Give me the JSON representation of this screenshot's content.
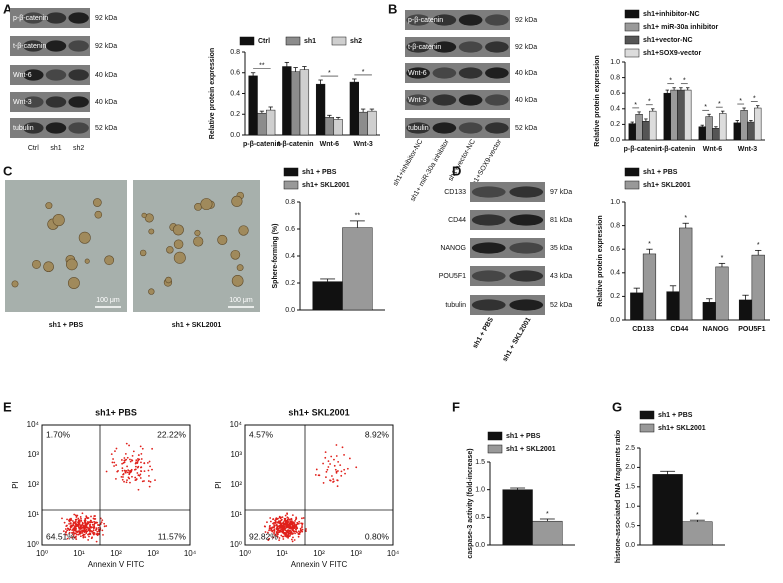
{
  "panel_letters": [
    "A",
    "B",
    "C",
    "D",
    "E",
    "F",
    "G"
  ],
  "blots": [
    {
      "rows": [
        {
          "protein": "p-β-catenin",
          "size": "92 kDa"
        },
        {
          "protein": "t-β-catenin",
          "size": "92 kDa"
        },
        {
          "protein": "Wnt-6",
          "size": "40 kDa"
        },
        {
          "protein": "Wnt-3",
          "size": "40 kDa"
        },
        {
          "protein": "tubulin",
          "size": "52 kDa"
        }
      ],
      "lanes": [
        "Ctrl",
        "sh1",
        "sh2"
      ]
    },
    {
      "rows": [
        {
          "protein": "p-β-catenin",
          "size": "92 kDa"
        },
        {
          "protein": "t-β-catenin",
          "size": "92 kDa"
        },
        {
          "protein": "Wnt-6",
          "size": "40 kDa"
        },
        {
          "protein": "Wnt-3",
          "size": "40 kDa"
        },
        {
          "protein": "tubulin",
          "size": "52 kDa"
        }
      ],
      "lanes": [
        "sh1+inhibitor-NC",
        "sh1+ miR-30a inhibitor",
        "sh1+vector-NC",
        "sh1+SOX9-vector"
      ]
    },
    {
      "rows": [
        {
          "protein": "CD133",
          "size": "97 kDa"
        },
        {
          "protein": "CD44",
          "size": "81 kDa"
        },
        {
          "protein": "NANOG",
          "size": "35 kDa"
        },
        {
          "protein": "POU5F1",
          "size": "43 kDa"
        },
        {
          "protein": "tubulin",
          "size": "52 kDa"
        }
      ],
      "lanes": [
        "sh1 + PBS",
        "sh1 + SKL2001"
      ]
    }
  ],
  "images": {
    "captions": [
      "sh1 + PBS",
      "sh1 + SKL2001"
    ],
    "scale_bars": [
      "100 μm",
      "100 μm"
    ]
  },
  "flow": {
    "plots": [
      {
        "title": "sh1+ PBS",
        "quadrants": [
          "1.70%",
          "22.22%",
          "64.51%",
          "11.57%"
        ]
      },
      {
        "title": "sh1+ SKL2001",
        "quadrants": [
          "4.57%",
          "8.92%",
          "92.82%",
          "0.80%"
        ]
      }
    ],
    "x_label": "Annexin V FITC",
    "y_label": "PI",
    "ticks": [
      "10⁰",
      "10¹",
      "10²",
      "10³",
      "10⁴"
    ]
  },
  "chart_data": [
    {
      "type": "bar",
      "y_label": "Relative protein expression",
      "categories": [
        "p-β-catenin",
        "t-β-catenin",
        "Wnt-6",
        "Wnt-3"
      ],
      "series": [
        {
          "name": "Ctrl",
          "color": "#111111",
          "values": [
            0.57,
            0.66,
            0.49,
            0.51
          ],
          "errors": [
            0.03,
            0.04,
            0.04,
            0.03
          ]
        },
        {
          "name": "sh1",
          "color": "#8c8c8c",
          "values": [
            0.21,
            0.61,
            0.17,
            0.22
          ],
          "errors": [
            0.02,
            0.04,
            0.02,
            0.03
          ]
        },
        {
          "name": "sh2",
          "color": "#cfcfcf",
          "values": [
            0.24,
            0.63,
            0.15,
            0.23
          ],
          "errors": [
            0.03,
            0.03,
            0.02,
            0.02
          ]
        }
      ],
      "ylim": [
        0,
        0.8
      ],
      "yticks": [
        {
          "value": 0,
          "label": "0.0"
        },
        0.2,
        0.4,
        0.6,
        0.8
      ],
      "annotations": [
        "**",
        null,
        "*",
        "*"
      ]
    },
    {
      "type": "bar",
      "y_label": "Relative protein expression",
      "categories": [
        "p-β-catenin",
        "t-β-catenin",
        "Wnt-6",
        "Wnt-3"
      ],
      "series": [
        {
          "name": "sh1+inhibitor-NC",
          "color": "#111111",
          "values": [
            0.21,
            0.6,
            0.17,
            0.22
          ],
          "errors": [
            0.02,
            0.04,
            0.02,
            0.03
          ]
        },
        {
          "name": "sh1+ miR-30a inhibitor",
          "color": "#9a9a9a",
          "values": [
            0.33,
            0.64,
            0.3,
            0.38
          ],
          "errors": [
            0.03,
            0.03,
            0.03,
            0.03
          ]
        },
        {
          "name": "sh1+vector-NC",
          "color": "#555555",
          "values": [
            0.24,
            0.64,
            0.15,
            0.23
          ],
          "errors": [
            0.03,
            0.03,
            0.02,
            0.02
          ]
        },
        {
          "name": "sh1+SOX9-vector",
          "color": "#dcdcdc",
          "values": [
            0.37,
            0.64,
            0.34,
            0.41
          ],
          "errors": [
            0.03,
            0.03,
            0.03,
            0.03
          ]
        }
      ],
      "ylim": [
        0,
        1.0
      ],
      "yticks": [
        {
          "value": 0,
          "label": "0.0"
        },
        0.2,
        0.4,
        0.6,
        0.8,
        {
          "value": 1,
          "label": "1.0"
        }
      ],
      "annotations": [
        "*",
        "*",
        "*",
        "*",
        "*",
        "*",
        "*",
        "*"
      ]
    },
    {
      "type": "bar",
      "y_label": "Sphere-forming (%)",
      "categories": [
        null
      ],
      "series": [
        {
          "name": "sh1 + PBS",
          "color": "#111111",
          "values": [
            0.21
          ],
          "errors": [
            0.02
          ]
        },
        {
          "name": "sh1+ SKL2001",
          "color": "#999999",
          "values": [
            0.61
          ],
          "errors": [
            0.05
          ]
        }
      ],
      "ylim": [
        0,
        0.8
      ],
      "yticks": [
        {
          "value": 0,
          "label": "0.0"
        },
        0.2,
        0.4,
        0.6,
        0.8
      ],
      "annotations": [
        "**"
      ]
    },
    {
      "type": "bar",
      "y_label": "Relative protein expression",
      "categories": [
        "CD133",
        "CD44",
        "NANOG",
        "POU5F1"
      ],
      "series": [
        {
          "name": "sh1 + PBS",
          "color": "#111111",
          "values": [
            0.23,
            0.24,
            0.15,
            0.17
          ],
          "errors": [
            0.04,
            0.05,
            0.03,
            0.04
          ]
        },
        {
          "name": "sh1+ SKL2001",
          "color": "#999999",
          "values": [
            0.56,
            0.78,
            0.45,
            0.55
          ],
          "errors": [
            0.04,
            0.04,
            0.03,
            0.04
          ]
        }
      ],
      "ylim": [
        0,
        1.0
      ],
      "yticks": [
        {
          "value": 0,
          "label": "0.0"
        },
        0.2,
        0.4,
        0.6,
        0.8,
        {
          "value": 1,
          "label": "1.0"
        }
      ],
      "annotations": [
        "*",
        "*",
        "*",
        "*"
      ]
    },
    {
      "type": "bar",
      "y_label": "caspase-3 activity (fold-increase)",
      "categories": [
        null
      ],
      "series": [
        {
          "name": "sh1 + PBS",
          "color": "#111111",
          "values": [
            1.0
          ],
          "errors": [
            0.03
          ]
        },
        {
          "name": "sh1 + SKL2001",
          "color": "#999999",
          "values": [
            0.43
          ],
          "errors": [
            0.04
          ]
        }
      ],
      "ylim": [
        0,
        1.5
      ],
      "yticks": [
        {
          "value": 0,
          "label": "0.0"
        },
        0.5,
        {
          "value": 1,
          "label": "1.0"
        },
        1.5
      ],
      "annotations": [
        "*"
      ]
    },
    {
      "type": "bar",
      "y_label": "histone-associated DNA fragments ratio",
      "categories": [
        null
      ],
      "series": [
        {
          "name": "sh1 + PBS",
          "color": "#111111",
          "values": [
            1.82
          ],
          "errors": [
            0.08
          ]
        },
        {
          "name": "sh1+ SKL2001",
          "color": "#999999",
          "values": [
            0.6
          ],
          "errors": [
            0.04
          ]
        }
      ],
      "ylim": [
        0,
        2.5
      ],
      "yticks": [
        {
          "value": 0,
          "label": "0.0"
        },
        0.5,
        {
          "value": 1,
          "label": "1.0"
        },
        1.5,
        {
          "value": 2,
          "label": "2.0"
        },
        2.5
      ],
      "annotations": [
        "*"
      ]
    }
  ]
}
